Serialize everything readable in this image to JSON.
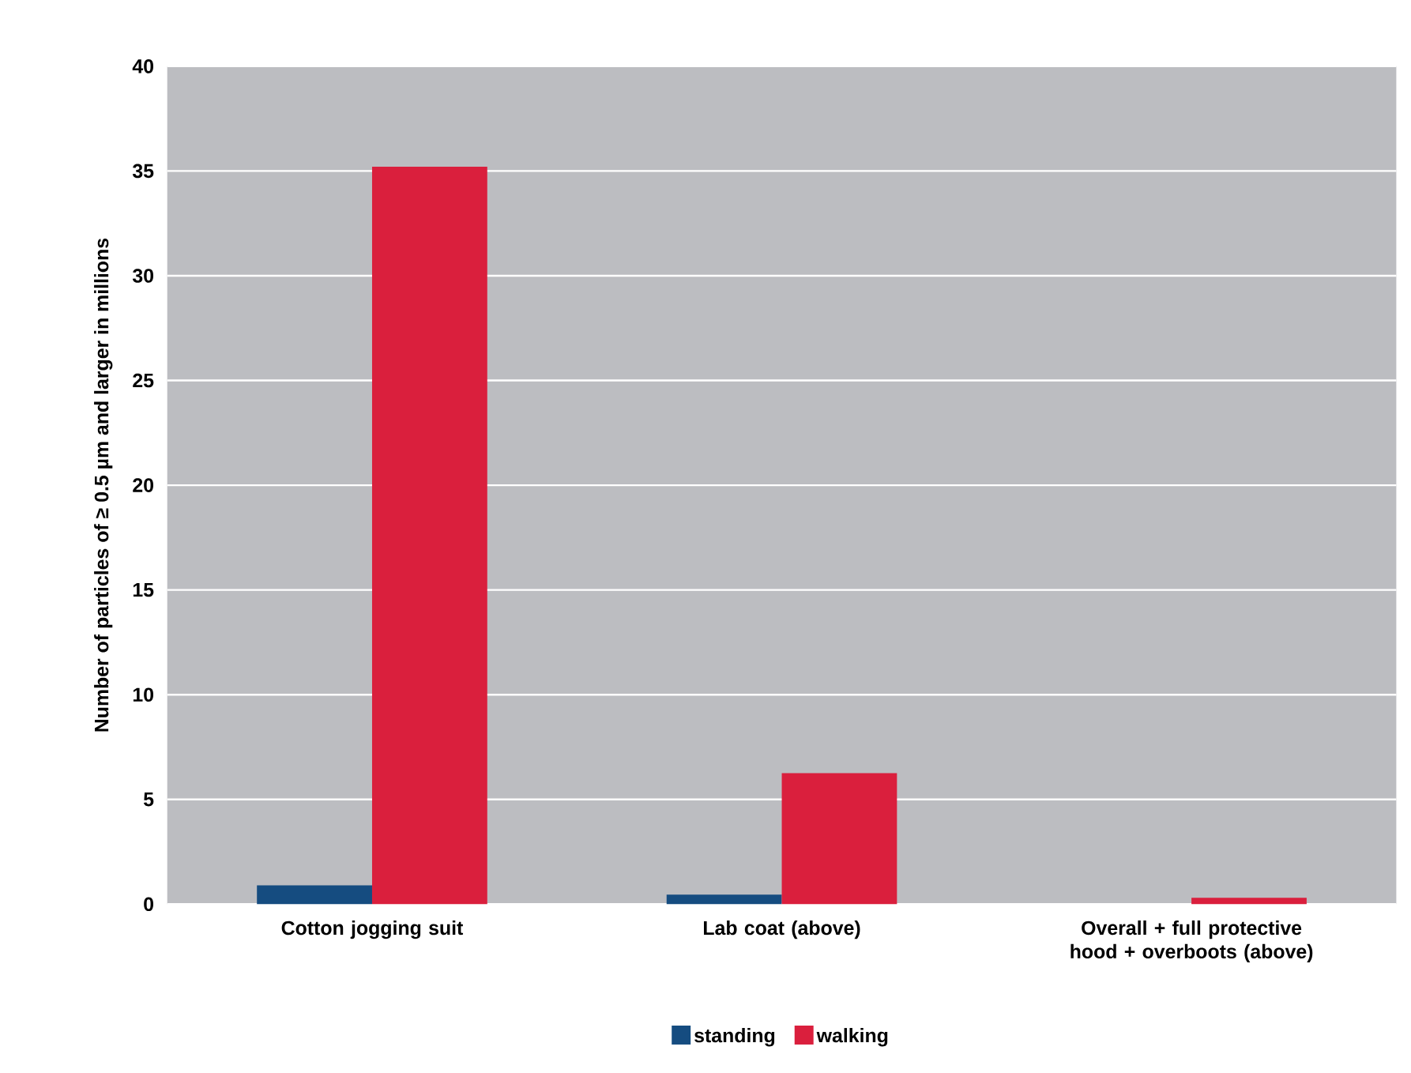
{
  "chart_data": {
    "type": "bar",
    "ylabel": "Number of particles of ≥ 0.5 µm and larger in millions",
    "categories": [
      "Cotton jogging suit",
      "Lab coat (above)",
      "Overall + full protective hood + overboots (above)"
    ],
    "series": [
      {
        "name": "standing",
        "color": "#154c80",
        "values": [
          0.9,
          0.45,
          0
        ]
      },
      {
        "name": "walking",
        "color": "#da1f3d",
        "values": [
          35.2,
          6.25,
          0.3
        ]
      }
    ],
    "ylim": [
      0,
      40
    ],
    "yticks": [
      0,
      5,
      10,
      15,
      20,
      25,
      30,
      35,
      40
    ],
    "grid": "y",
    "legend": "bottom"
  }
}
